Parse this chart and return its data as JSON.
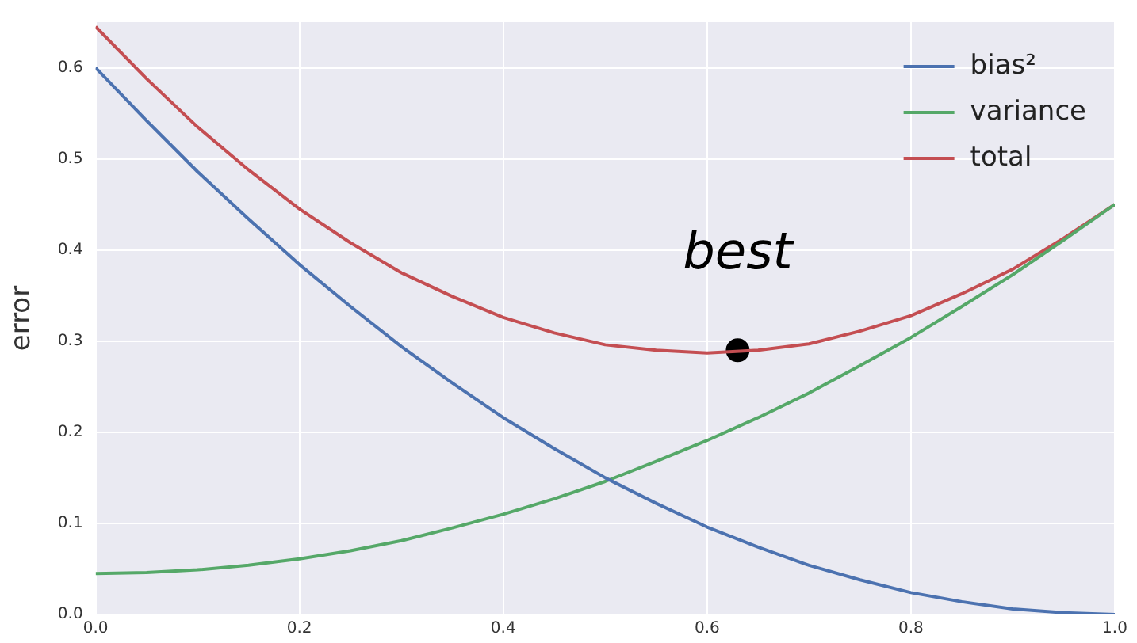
{
  "chart_data": {
    "type": "line",
    "ylabel": "error",
    "x": [
      0,
      0.05,
      0.1,
      0.15,
      0.2,
      0.25,
      0.3,
      0.35,
      0.4,
      0.45,
      0.5,
      0.55,
      0.6,
      0.65,
      0.7,
      0.75,
      0.8,
      0.85,
      0.9,
      0.95,
      1
    ],
    "series": [
      {
        "name": "bias²",
        "color": "#4c72b0",
        "values": [
          0.6,
          0.542,
          0.486,
          0.434,
          0.384,
          0.338,
          0.294,
          0.254,
          0.216,
          0.182,
          0.15,
          0.122,
          0.096,
          0.074,
          0.054,
          0.038,
          0.024,
          0.014,
          0.006,
          0.002,
          0
        ]
      },
      {
        "name": "variance",
        "color": "#55a868",
        "values": [
          0.045,
          0.046,
          0.049,
          0.054,
          0.061,
          0.07,
          0.081,
          0.095,
          0.11,
          0.127,
          0.146,
          0.168,
          0.191,
          0.216,
          0.243,
          0.273,
          0.304,
          0.338,
          0.373,
          0.411,
          0.45
        ]
      },
      {
        "name": "total",
        "color": "#c44e52",
        "values": [
          0.645,
          0.588,
          0.535,
          0.488,
          0.445,
          0.408,
          0.375,
          0.349,
          0.326,
          0.309,
          0.296,
          0.29,
          0.287,
          0.29,
          0.297,
          0.311,
          0.328,
          0.352,
          0.379,
          0.413,
          0.45
        ]
      },
      {
        "type": "scatter",
        "marker": "circle",
        "color": "#000000",
        "x": [
          0.63
        ],
        "values": [
          0.29
        ]
      }
    ],
    "annotations": [
      {
        "text": "best",
        "x": 0.63,
        "y": 0.29
      }
    ],
    "xlim": [
      0,
      1
    ],
    "xticks": [
      {
        "value": 0,
        "label": "0.0"
      },
      {
        "value": 0.2,
        "label": "0.2"
      },
      {
        "value": 0.4,
        "label": "0.4"
      },
      {
        "value": 0.6,
        "label": "0.6"
      },
      {
        "value": 0.8,
        "label": "0.8"
      },
      {
        "value": 1,
        "label": "1.0"
      }
    ],
    "ylim": [
      0,
      0.65
    ],
    "yticks": [
      {
        "value": 0,
        "label": "0.0"
      },
      {
        "value": 0.1,
        "label": "0.1"
      },
      {
        "value": 0.2,
        "label": "0.2"
      },
      {
        "value": 0.3,
        "label": "0.3"
      },
      {
        "value": 0.4,
        "label": "0.4"
      },
      {
        "value": 0.5,
        "label": "0.5"
      },
      {
        "value": 0.6,
        "label": "0.6"
      }
    ],
    "grid": true,
    "legend": "top right",
    "marker": "none",
    "line_style": "solid"
  }
}
